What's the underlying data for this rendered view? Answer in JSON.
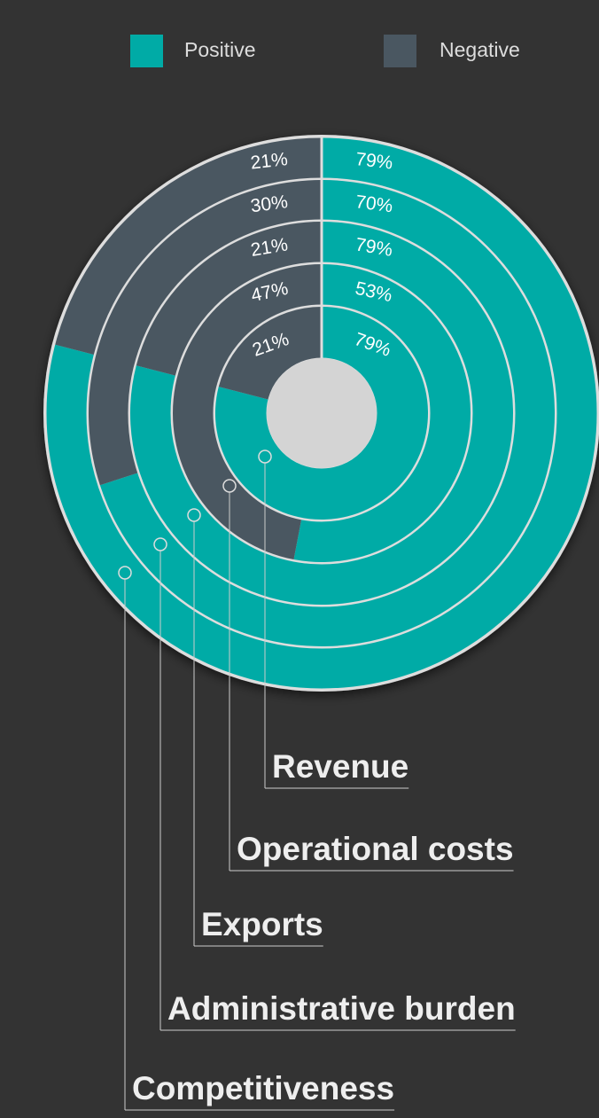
{
  "chart_data": {
    "type": "radial-bar",
    "categories": [
      "Competitiveness",
      "Administrative burden",
      "Exports",
      "Operational costs",
      "Revenue"
    ],
    "series": [
      {
        "name": "Positive",
        "color": "#00aba6",
        "values": [
          79,
          70,
          79,
          53,
          79
        ],
        "value_labels": [
          "79%",
          "70%",
          "79%",
          "53%",
          "79%"
        ]
      },
      {
        "name": "Negative",
        "color": "#4a5761",
        "values": [
          21,
          30,
          21,
          47,
          21
        ],
        "value_labels": [
          "21%",
          "30%",
          "21%",
          "47%",
          "21%"
        ]
      }
    ]
  }
}
